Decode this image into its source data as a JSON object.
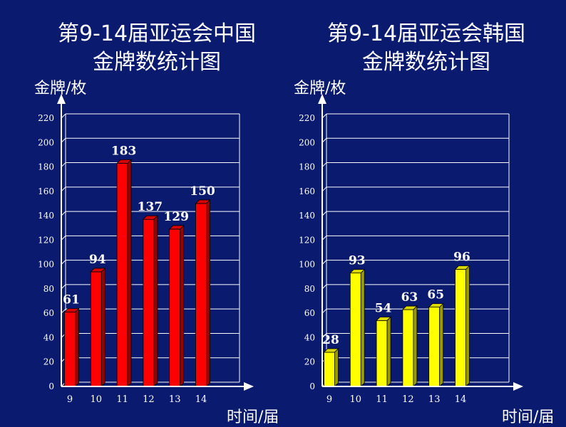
{
  "chart_data": [
    {
      "type": "bar",
      "title_line1": "第9-14届亚运会中国",
      "title_line2": "金牌数统计图",
      "ylabel": "金牌/枚",
      "xlabel": "时间/届",
      "categories": [
        "9",
        "10",
        "11",
        "12",
        "13",
        "14"
      ],
      "values": [
        61,
        94,
        183,
        137,
        129,
        150
      ],
      "yticks": [
        "0",
        "20",
        "40",
        "60",
        "80",
        "100",
        "120",
        "140",
        "160",
        "180",
        "200",
        "220"
      ],
      "ylim": [
        0,
        220
      ],
      "grid": true,
      "bar_color": "#ff0000"
    },
    {
      "type": "bar",
      "title_line1": "第9-14届亚运会韩国",
      "title_line2": "金牌数统计图",
      "ylabel": "金牌/枚",
      "xlabel": "时间/届",
      "categories": [
        "9",
        "10",
        "11",
        "12",
        "13",
        "14"
      ],
      "values": [
        28,
        93,
        54,
        63,
        65,
        96
      ],
      "yticks": [
        "0",
        "20",
        "40",
        "60",
        "80",
        "100",
        "120",
        "140",
        "160",
        "180",
        "200",
        "220"
      ],
      "ylim": [
        0,
        220
      ],
      "grid": true,
      "bar_color": "#ffff00"
    }
  ]
}
